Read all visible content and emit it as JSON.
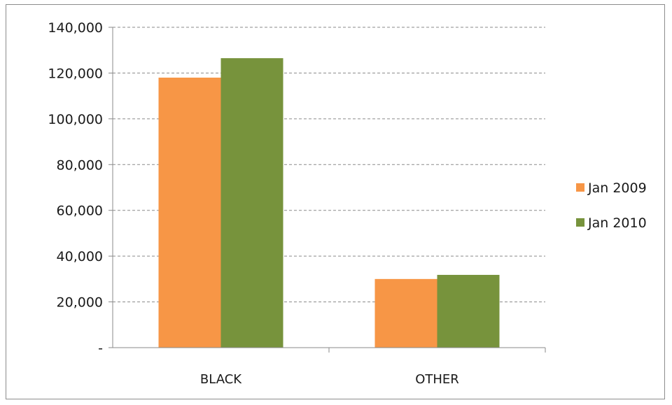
{
  "chart_data": {
    "type": "bar",
    "categories": [
      "BLACK",
      "OTHER"
    ],
    "series": [
      {
        "name": "Jan 2009",
        "color": "#f79646",
        "values": [
          118000,
          30000
        ]
      },
      {
        "name": "Jan 2010",
        "color": "#77933c",
        "values": [
          126500,
          31800
        ]
      }
    ],
    "ylim": [
      0,
      140000
    ],
    "yticks": [
      0,
      20000,
      40000,
      60000,
      80000,
      100000,
      120000,
      140000
    ],
    "ytick_labels": [
      "-",
      "20,000",
      "40,000",
      "60,000",
      "80,000",
      "100,000",
      "120,000",
      "140,000"
    ],
    "grid": true,
    "legend_position": "right"
  }
}
